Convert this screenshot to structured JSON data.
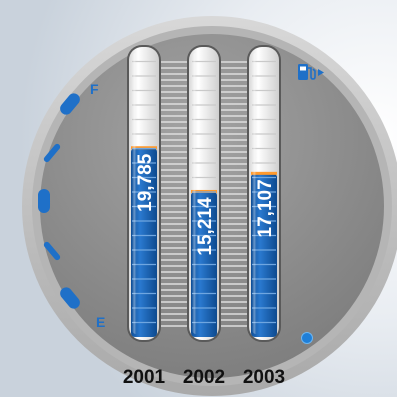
{
  "gauge": {
    "full_label": "F",
    "empty_label": "E",
    "pump_icon": "fuel-pump-icon",
    "colors": {
      "accent": "#1f70c8",
      "face": "#8e8e8e",
      "rim": "#c4c4c4",
      "tube_empty": "#f6f6f6",
      "tube_fill": "#1f63b3"
    }
  },
  "chart_data": {
    "type": "bar",
    "orientation": "vertical",
    "categories": [
      "2001",
      "2002",
      "2003"
    ],
    "values": [
      19785,
      15214,
      17107
    ],
    "value_labels": [
      "19,785",
      "15,214",
      "17,107"
    ],
    "ylim": [
      0,
      30000
    ],
    "title": "",
    "xlabel": "",
    "ylabel": "",
    "grid": false,
    "legend": "none"
  }
}
